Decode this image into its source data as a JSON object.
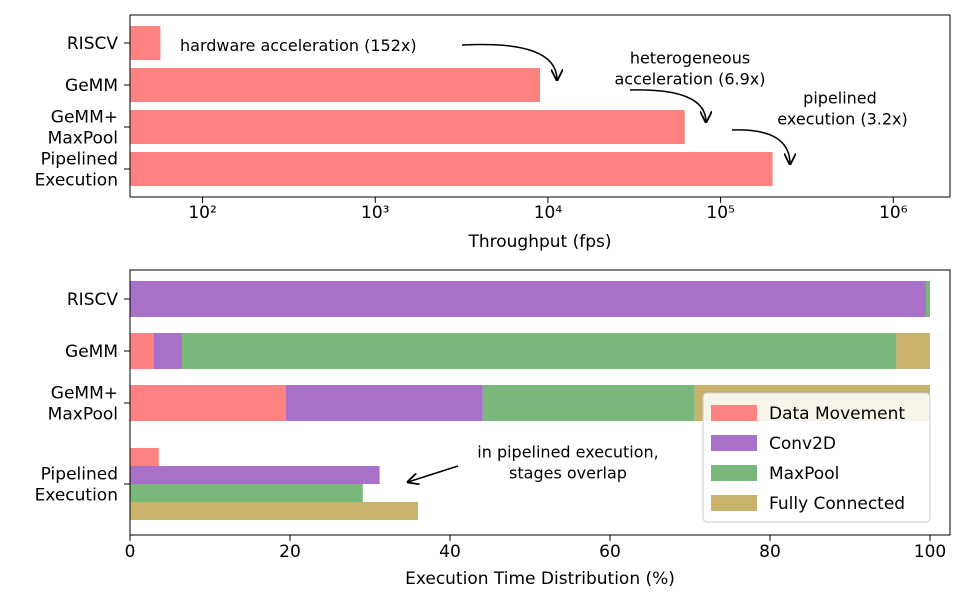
{
  "chart_data": [
    {
      "type": "barh",
      "xscale": "log",
      "categories": [
        "RISCV",
        "GeMM",
        "GeMM+\nMaxPool",
        "Pipelined\nExecution"
      ],
      "values": [
        57,
        9000,
        62000,
        200000
      ],
      "color": "#fe8380",
      "xlim": [
        38,
        2130000
      ],
      "xticks": [
        {
          "value": 100,
          "label": "10²"
        },
        {
          "value": 1000,
          "label": "10³"
        },
        {
          "value": 10000,
          "label": "10⁴"
        },
        {
          "value": 100000,
          "label": "10⁵"
        },
        {
          "value": 1000000,
          "label": "10⁶"
        }
      ],
      "xlabel": "Throughput (fps)",
      "annotations": [
        "hardware acceleration (152x)",
        "heterogeneous\nacceleration (6.9x)",
        "pipelined\n execution (3.2x)"
      ]
    },
    {
      "type": "stacked_barh",
      "categories": [
        "RISCV",
        "GeMM",
        "GeMM+\nMaxPool",
        "Pipelined\nExecution"
      ],
      "grouped_categories": [
        "Pipelined\nExecution"
      ],
      "series": [
        {
          "name": "Data Movement",
          "color": "#fe8380",
          "values": [
            0,
            3.0,
            19.5,
            3.6
          ]
        },
        {
          "name": "Conv2D",
          "color": "#a870c8",
          "values": [
            99.5,
            3.5,
            24.6,
            31.2
          ]
        },
        {
          "name": "MaxPool",
          "color": "#7ab77a",
          "values": [
            0.5,
            89.3,
            26.5,
            29.1
          ]
        },
        {
          "name": "Fully Connected",
          "color": "#cbb26b",
          "values": [
            0,
            4.2,
            29.4,
            36.0
          ]
        }
      ],
      "xlim": [
        0,
        102.5
      ],
      "xticks": [
        0,
        20,
        40,
        60,
        80,
        100
      ],
      "xlabel": "Execution Time Distribution (%)",
      "legend": "lower right",
      "annotations": [
        "in pipelined execution,\nstages overlap"
      ]
    }
  ]
}
